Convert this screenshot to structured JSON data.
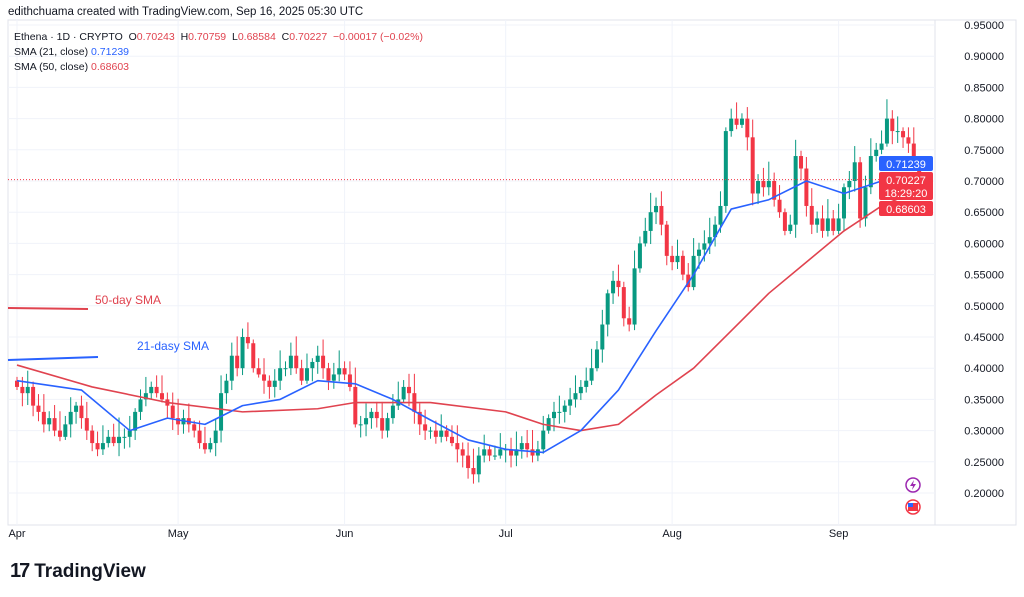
{
  "credit": "edithchuama created with TradingView.com, Sep 16, 2025 05:30 UTC",
  "legend": {
    "symbol": "Ethena · 1D · CRYPTO",
    "o_label": "O",
    "o": "0.70243",
    "h_label": "H",
    "h": "0.70759",
    "l_label": "L",
    "l": "0.68584",
    "c_label": "C",
    "c": "0.70227",
    "change": "−0.00017 (−0.02%)",
    "sma21_label": "SMA (21, close)",
    "sma21": "0.71239",
    "sma50_label": "SMA (50, close)",
    "sma50": "0.68603"
  },
  "price_tags": {
    "sma21": "0.71239",
    "last": "0.70227",
    "countdown": "18:29:20",
    "sma50": "0.68603"
  },
  "annotations": {
    "sma50": "50-day SMA",
    "sma21": "21-dasy SMA"
  },
  "brand": "TradingView",
  "colors": {
    "up": "#089981",
    "down": "#f23645",
    "sma21": "#2962ff",
    "sma50": "#e0434f"
  },
  "chart_data": {
    "type": "candlestick",
    "title": "Ethena · 1D · CRYPTO",
    "start_date": "2025-04-01",
    "ylim": [
      0.17,
      0.96
    ],
    "yticks": [
      "0.95000",
      "0.90000",
      "0.85000",
      "0.80000",
      "0.75000",
      "0.70000",
      "0.65000",
      "0.60000",
      "0.55000",
      "0.50000",
      "0.45000",
      "0.40000",
      "0.35000",
      "0.30000",
      "0.25000",
      "0.20000"
    ],
    "xticks": [
      {
        "label": "Apr",
        "day": 0
      },
      {
        "label": "May",
        "day": 30
      },
      {
        "label": "Jun",
        "day": 61
      },
      {
        "label": "Jul",
        "day": 91
      },
      {
        "label": "Aug",
        "day": 122
      },
      {
        "label": "Sep",
        "day": 153
      }
    ],
    "closes": [
      0.37,
      0.36,
      0.37,
      0.34,
      0.33,
      0.31,
      0.32,
      0.3,
      0.29,
      0.31,
      0.33,
      0.34,
      0.32,
      0.3,
      0.28,
      0.27,
      0.28,
      0.29,
      0.28,
      0.29,
      0.29,
      0.3,
      0.33,
      0.35,
      0.36,
      0.37,
      0.36,
      0.35,
      0.34,
      0.32,
      0.31,
      0.32,
      0.31,
      0.3,
      0.28,
      0.27,
      0.28,
      0.3,
      0.36,
      0.38,
      0.42,
      0.4,
      0.45,
      0.44,
      0.4,
      0.39,
      0.38,
      0.37,
      0.38,
      0.4,
      0.4,
      0.42,
      0.4,
      0.38,
      0.4,
      0.41,
      0.42,
      0.4,
      0.38,
      0.39,
      0.4,
      0.39,
      0.37,
      0.31,
      0.31,
      0.32,
      0.33,
      0.32,
      0.3,
      0.32,
      0.34,
      0.35,
      0.37,
      0.36,
      0.33,
      0.31,
      0.3,
      0.3,
      0.29,
      0.3,
      0.29,
      0.28,
      0.27,
      0.26,
      0.24,
      0.23,
      0.26,
      0.27,
      0.26,
      0.26,
      0.27,
      0.27,
      0.26,
      0.27,
      0.28,
      0.27,
      0.26,
      0.27,
      0.3,
      0.32,
      0.33,
      0.33,
      0.34,
      0.35,
      0.36,
      0.37,
      0.38,
      0.4,
      0.43,
      0.47,
      0.52,
      0.54,
      0.53,
      0.48,
      0.47,
      0.56,
      0.6,
      0.62,
      0.65,
      0.66,
      0.63,
      0.58,
      0.57,
      0.58,
      0.55,
      0.53,
      0.58,
      0.59,
      0.6,
      0.61,
      0.63,
      0.66,
      0.78,
      0.8,
      0.79,
      0.8,
      0.77,
      0.68,
      0.7,
      0.69,
      0.7,
      0.67,
      0.65,
      0.62,
      0.63,
      0.74,
      0.72,
      0.66,
      0.63,
      0.64,
      0.62,
      0.64,
      0.62,
      0.64,
      0.69,
      0.7,
      0.73,
      0.64,
      0.69,
      0.74,
      0.75,
      0.76,
      0.8,
      0.78,
      0.78,
      0.77,
      0.76,
      0.73,
      0.70227
    ],
    "first_open": 0.38,
    "sma21": {
      "days": [
        0,
        12,
        21,
        28,
        35,
        42,
        49,
        56,
        63,
        70,
        77,
        84,
        91,
        98,
        105,
        112,
        119,
        126,
        133,
        140,
        147,
        154,
        161,
        168
      ],
      "values": [
        0.38,
        0.365,
        0.3,
        0.32,
        0.31,
        0.34,
        0.35,
        0.38,
        0.375,
        0.35,
        0.317,
        0.285,
        0.27,
        0.265,
        0.3,
        0.365,
        0.46,
        0.55,
        0.655,
        0.67,
        0.7,
        0.68,
        0.7,
        0.71239
      ]
    },
    "sma50": {
      "days": [
        0,
        14,
        28,
        42,
        56,
        63,
        77,
        91,
        98,
        105,
        112,
        119,
        126,
        133,
        140,
        147,
        154,
        161,
        168
      ],
      "values": [
        0.405,
        0.37,
        0.345,
        0.33,
        0.335,
        0.345,
        0.345,
        0.33,
        0.31,
        0.3,
        0.31,
        0.357,
        0.4,
        0.46,
        0.52,
        0.57,
        0.62,
        0.66,
        0.68603
      ]
    }
  }
}
